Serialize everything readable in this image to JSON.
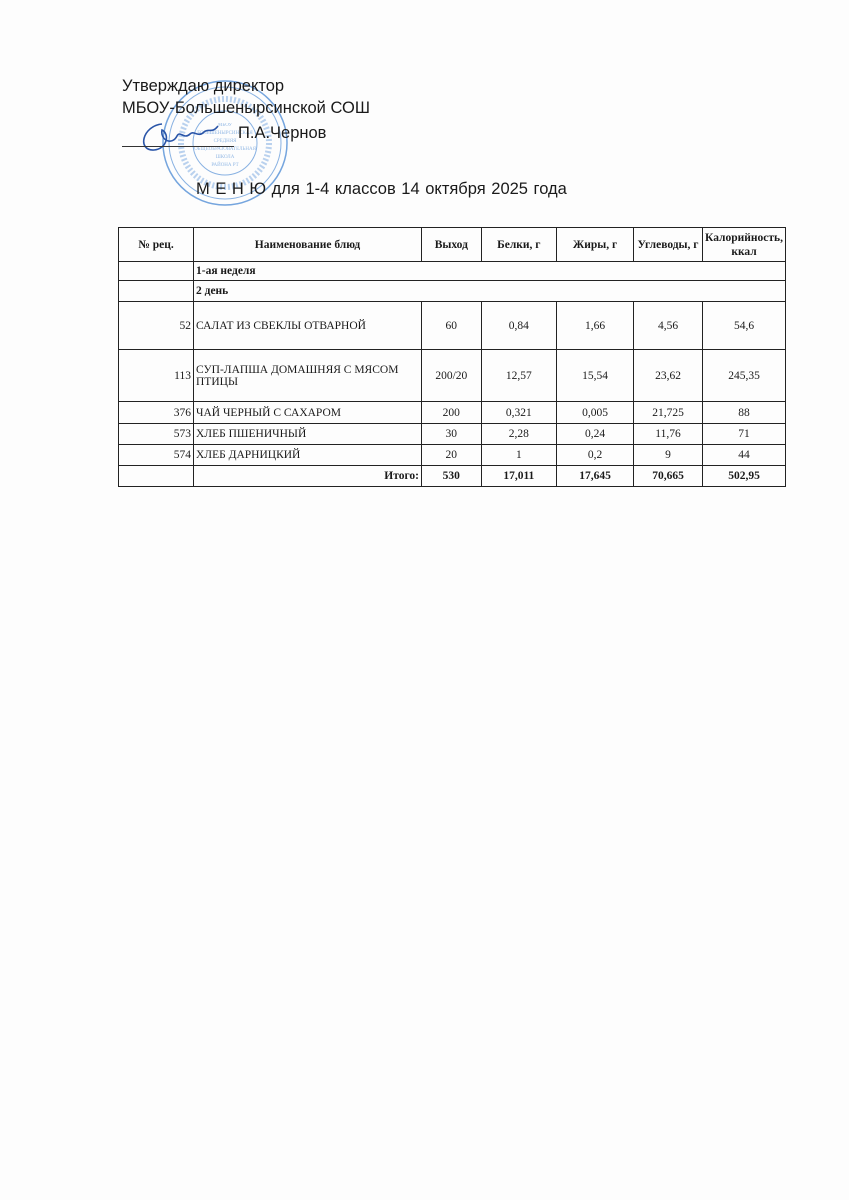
{
  "header": {
    "approve": "Утверждаю  директор",
    "organization": "МБОУ-Большенырсинской СОШ",
    "director_name": "П.А.Чернов",
    "stamp_text": "МБОУ Большенырсинская средняя общеобразовательная школа Тюлячинского района РТ"
  },
  "title": "М Е Н Ю  для 1-4 классов   14  октября   2025 года",
  "table": {
    "columns": [
      "№ рец.",
      "Наименование блюд",
      "Выход",
      "Белки, г",
      "Жиры, г",
      "Углеводы, г",
      "Калорийность, ккал"
    ],
    "week": "1-ая неделя",
    "day": "2 день",
    "rows": [
      {
        "rec": "52",
        "name": "САЛАТ ИЗ СВЕКЛЫ ОТВАРНОЙ",
        "yield": "60",
        "protein": "0,84",
        "fat": "1,66",
        "carbs": "4,56",
        "kcal": "54,6"
      },
      {
        "rec": "113",
        "name": "СУП-ЛАПША ДОМАШНЯЯ С МЯСОМ ПТИЦЫ",
        "yield": "200/20",
        "protein": "12,57",
        "fat": "15,54",
        "carbs": "23,62",
        "kcal": "245,35"
      },
      {
        "rec": "376",
        "name": "ЧАЙ ЧЕРНЫЙ С САХАРОМ",
        "yield": "200",
        "protein": "0,321",
        "fat": "0,005",
        "carbs": "21,725",
        "kcal": "88"
      },
      {
        "rec": "573",
        "name": "ХЛЕБ ПШЕНИЧНЫЙ",
        "yield": "30",
        "protein": "2,28",
        "fat": "0,24",
        "carbs": "11,76",
        "kcal": "71"
      },
      {
        "rec": "574",
        "name": "ХЛЕБ ДАРНИЦКИЙ",
        "yield": "20",
        "protein": "1",
        "fat": "0,2",
        "carbs": "9",
        "kcal": "44"
      }
    ],
    "total": {
      "label": "Итого:",
      "yield": "530",
      "protein": "17,011",
      "fat": "17,645",
      "carbs": "70,665",
      "kcal": "502,95"
    }
  },
  "colors": {
    "stamp": "#3a7fd0",
    "signature": "#2a55a8"
  }
}
